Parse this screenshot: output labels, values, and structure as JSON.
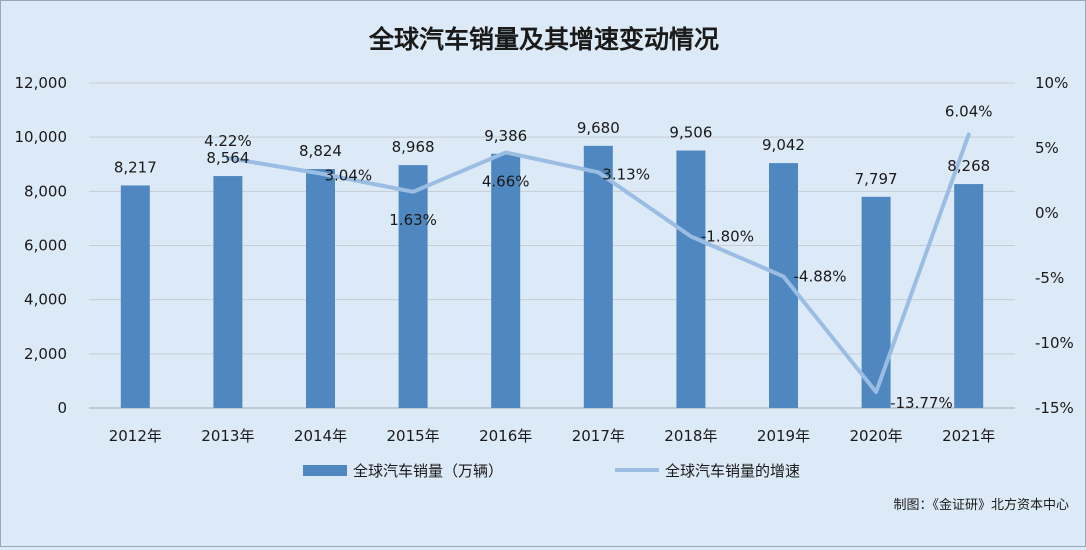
{
  "chart_data": {
    "type": "bar",
    "title": "全球汽车销量及其增速变动情况",
    "categories": [
      "2012年",
      "2013年",
      "2014年",
      "2015年",
      "2016年",
      "2017年",
      "2018年",
      "2019年",
      "2020年",
      "2021年"
    ],
    "series": [
      {
        "name": "全球汽车销量（万辆）",
        "type": "bar",
        "axis": "left",
        "values": [
          8217,
          8564,
          8824,
          8968,
          9386,
          9680,
          9506,
          9042,
          7797,
          8268
        ],
        "labels": [
          "8,217",
          "8,564",
          "8,824",
          "8,968",
          "9,386",
          "9,680",
          "9,506",
          "9,042",
          "7,797",
          "8,268"
        ],
        "color": "#4f87c0"
      },
      {
        "name": "全球汽车销量的增速",
        "type": "line",
        "axis": "right",
        "values": [
          null,
          4.22,
          3.04,
          1.63,
          4.66,
          3.13,
          -1.8,
          -4.88,
          -13.77,
          6.04
        ],
        "labels": [
          null,
          "4.22%",
          "3.04%",
          "1.63%",
          "4.66%",
          "3.13%",
          "-1.80%",
          "-4.88%",
          "-13.77%",
          "6.04%"
        ],
        "color": "#9bbde3"
      }
    ],
    "y_left": {
      "range": [
        0,
        12000
      ],
      "ticks": [
        "0",
        "2,000",
        "4,000",
        "6,000",
        "8,000",
        "10,000",
        "12,000"
      ]
    },
    "y_right": {
      "range": [
        -15,
        10
      ],
      "ticks": [
        "-15%",
        "-10%",
        "-5%",
        "0%",
        "5%",
        "10%"
      ]
    },
    "grid": true,
    "legend_position": "bottom"
  },
  "source": "制图：《金证研》北方资本中心"
}
